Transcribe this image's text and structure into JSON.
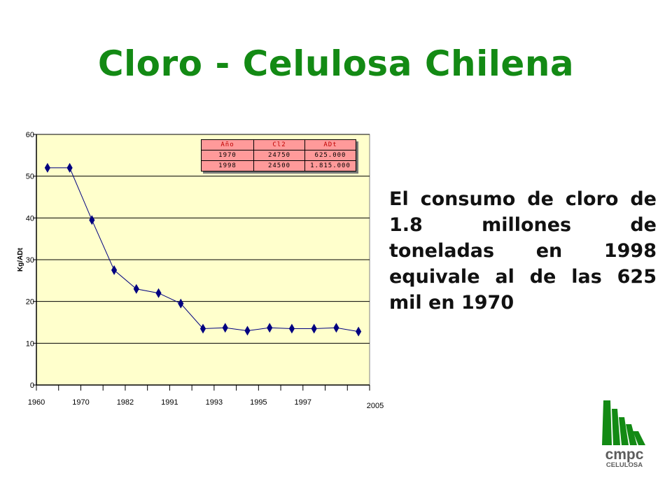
{
  "page": {
    "title": "Cloro - Celulosa Chilena",
    "body_text": "El consumo de cloro de 1.8 millones de toneladas en 1998 equivale al de las 625 mil en 1970"
  },
  "chart_data": {
    "type": "line",
    "title": "",
    "xlabel": "",
    "ylabel": "Kg/ADt",
    "ylim": [
      0,
      60
    ],
    "yticks": [
      0,
      10,
      20,
      30,
      40,
      50,
      60
    ],
    "xtick_labels": [
      "1960",
      "1970",
      "1982",
      "1991",
      "1993",
      "1995",
      "1997",
      "2005"
    ],
    "grid": true,
    "series": [
      {
        "values": [
          52,
          52,
          39.5,
          27.5,
          23,
          22,
          19.5,
          13.5,
          13.7,
          13,
          13.7,
          13.5,
          13.5,
          13.7,
          12.8
        ]
      }
    ],
    "colors": {
      "plot_bg": "#ffffcc",
      "line": "#000080",
      "marker": "#000080"
    },
    "inset_table": {
      "headers": [
        "Año",
        "Cl2",
        "ADt"
      ],
      "rows": [
        [
          "1970",
          "24750",
          "625.000"
        ],
        [
          "1998",
          "24500",
          "1.815.000"
        ]
      ]
    }
  },
  "logo": {
    "text_main": "cmpc",
    "text_sub": "CELULOSA",
    "icon": "cmpc-stripes-icon"
  },
  "colors": {
    "title": "#138a14",
    "logo_green": "#138a14",
    "logo_gray": "#5c5c5c"
  }
}
